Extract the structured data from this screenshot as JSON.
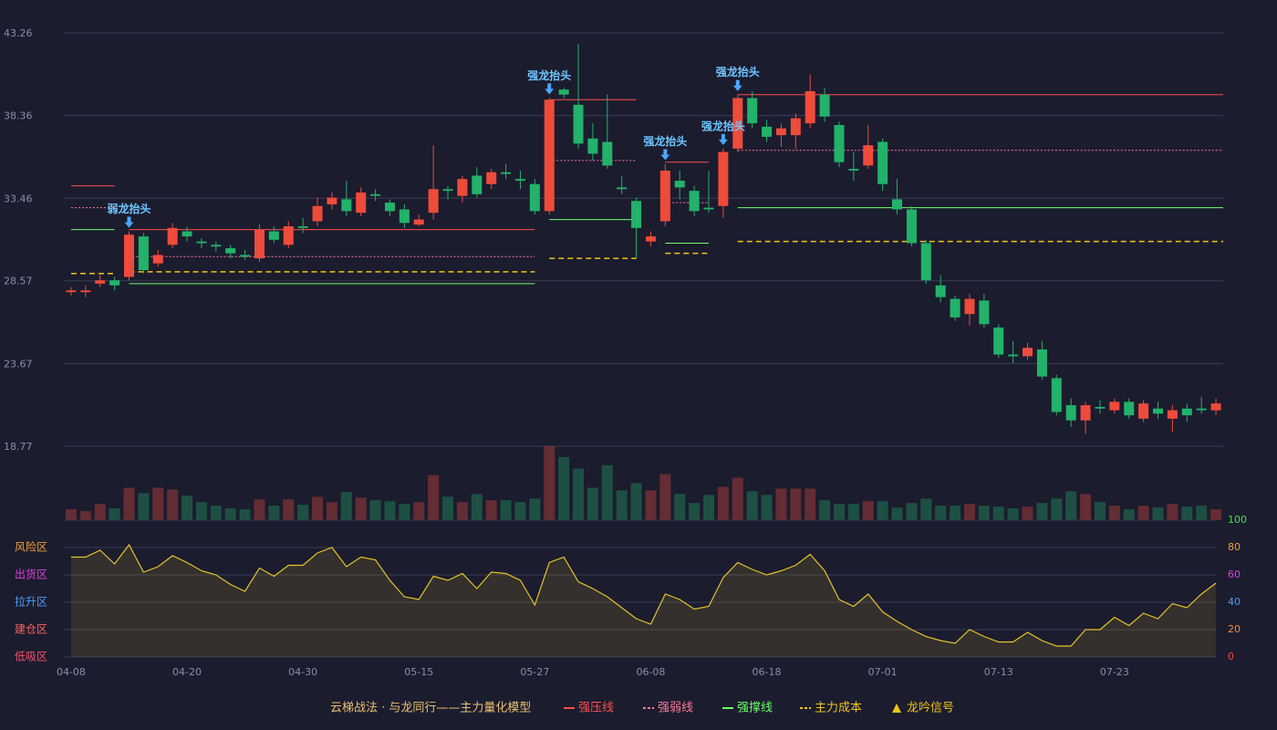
{
  "chart_data": {
    "type": "candlestick",
    "categories": [
      "04-08",
      null,
      null,
      null,
      null,
      null,
      null,
      null,
      "04-20",
      null,
      null,
      null,
      null,
      null,
      null,
      null,
      "04-30",
      null,
      null,
      null,
      null,
      null,
      null,
      null,
      "05-15",
      null,
      null,
      null,
      null,
      null,
      null,
      null,
      "05-27",
      null,
      null,
      null,
      null,
      null,
      null,
      null,
      "06-08",
      null,
      null,
      null,
      null,
      null,
      null,
      null,
      "06-18",
      null,
      null,
      null,
      null,
      null,
      null,
      null,
      "07-01",
      null,
      null,
      null,
      null,
      null,
      null,
      null,
      "07-13",
      null,
      null,
      null,
      null,
      null,
      null,
      null,
      "07-23",
      null,
      null,
      null,
      null,
      null,
      null,
      null
    ],
    "open": [
      27.9,
      27.9,
      28.4,
      28.6,
      28.8,
      31.2,
      29.6,
      30.7,
      31.5,
      30.9,
      30.7,
      30.5,
      30.1,
      29.9,
      31.5,
      30.7,
      31.8,
      32.1,
      33.1,
      33.4,
      32.6,
      33.7,
      33.2,
      32.8,
      31.9,
      32.6,
      34.0,
      33.6,
      34.8,
      34.3,
      35.0,
      34.6,
      34.3,
      32.7,
      39.9,
      39.0,
      37.0,
      36.8,
      34.1,
      33.3,
      30.9,
      32.1,
      34.5,
      33.9,
      32.9,
      33.0,
      36.4,
      39.4,
      37.7,
      37.2,
      37.2,
      37.9,
      39.6,
      37.8,
      35.2,
      35.4,
      36.8,
      33.4,
      32.8,
      30.8,
      28.3,
      27.5,
      26.6,
      27.4,
      25.8,
      24.2,
      24.1,
      24.5,
      22.8,
      21.2,
      20.3,
      21.1,
      20.9,
      21.4,
      20.4,
      21.0,
      20.4,
      21.0,
      21.0,
      20.9
    ],
    "high": [
      28.2,
      28.3,
      28.9,
      28.8,
      31.5,
      31.4,
      30.4,
      32.0,
      31.8,
      31.1,
      30.9,
      30.7,
      30.4,
      31.9,
      31.8,
      32.1,
      32.3,
      33.5,
      33.8,
      34.5,
      34.1,
      34.0,
      33.4,
      33.1,
      32.5,
      36.6,
      34.2,
      34.8,
      35.3,
      35.2,
      35.5,
      35.1,
      34.6,
      39.4,
      40.0,
      42.6,
      37.9,
      39.6,
      34.8,
      33.5,
      31.5,
      35.5,
      35.1,
      34.2,
      35.1,
      36.4,
      39.6,
      39.8,
      38.1,
      37.9,
      38.5,
      40.8,
      40.0,
      38.0,
      36.2,
      37.8,
      37.0,
      34.6,
      33.0,
      31.0,
      28.9,
      27.7,
      27.8,
      27.8,
      26.0,
      25.0,
      24.9,
      25.0,
      23.0,
      21.6,
      21.4,
      21.5,
      21.6,
      21.6,
      21.5,
      21.4,
      21.2,
      21.3,
      21.7,
      21.6
    ],
    "low": [
      27.7,
      27.6,
      28.2,
      28.0,
      28.6,
      29.0,
      29.4,
      30.5,
      30.9,
      30.5,
      30.3,
      29.9,
      29.8,
      29.7,
      30.8,
      30.5,
      31.4,
      31.8,
      32.8,
      32.4,
      32.4,
      33.3,
      32.4,
      31.7,
      31.8,
      32.2,
      33.4,
      33.2,
      33.5,
      34.0,
      34.6,
      34.0,
      32.5,
      32.5,
      39.4,
      36.4,
      35.7,
      35.2,
      33.7,
      29.9,
      30.6,
      31.8,
      33.4,
      32.4,
      32.6,
      32.3,
      36.2,
      37.6,
      36.8,
      36.5,
      36.4,
      37.6,
      38.0,
      35.3,
      34.5,
      35.2,
      33.9,
      32.5,
      30.6,
      28.4,
      27.3,
      26.2,
      25.9,
      25.8,
      24.0,
      23.7,
      23.9,
      22.7,
      20.6,
      19.9,
      19.5,
      20.7,
      20.7,
      20.4,
      20.2,
      20.4,
      19.6,
      20.2,
      20.7,
      20.6
    ],
    "close": [
      28.0,
      28.0,
      28.6,
      28.3,
      31.3,
      29.2,
      30.1,
      31.7,
      31.2,
      30.8,
      30.6,
      30.2,
      30.0,
      31.6,
      31.0,
      31.8,
      31.7,
      33.0,
      33.5,
      32.7,
      33.8,
      33.6,
      32.7,
      32.0,
      32.2,
      34.0,
      33.9,
      34.6,
      33.7,
      35.0,
      34.9,
      34.5,
      32.7,
      39.3,
      39.6,
      36.7,
      36.1,
      35.4,
      34.0,
      31.7,
      31.2,
      35.1,
      34.1,
      32.7,
      32.8,
      36.2,
      39.4,
      37.9,
      37.1,
      37.6,
      38.2,
      39.8,
      38.3,
      35.6,
      35.1,
      36.6,
      34.3,
      32.8,
      30.8,
      28.6,
      27.6,
      26.4,
      27.5,
      26.0,
      24.2,
      24.1,
      24.6,
      22.9,
      20.8,
      20.3,
      21.2,
      21.0,
      21.4,
      20.6,
      21.3,
      20.7,
      20.9,
      20.6,
      20.9,
      21.3
    ],
    "up_color": "#ee4b3b",
    "down_color": "#22b26a",
    "ylim": [
      18.77,
      43.26
    ],
    "yticks": [
      43.26,
      38.36,
      33.46,
      28.57,
      23.67,
      18.77
    ],
    "grid": true,
    "volume": {
      "values": [
        12,
        10,
        18,
        13,
        36,
        30,
        36,
        34,
        27,
        20,
        16,
        13,
        12,
        23,
        16,
        23,
        17,
        26,
        20,
        31,
        25,
        22,
        21,
        18,
        20,
        50,
        26,
        20,
        29,
        22,
        22,
        20,
        24,
        82,
        70,
        57,
        36,
        61,
        33,
        41,
        33,
        51,
        29,
        19,
        28,
        37,
        47,
        32,
        28,
        35,
        35,
        35,
        22,
        18,
        18,
        21,
        21,
        14,
        19,
        24,
        16,
        16,
        18,
        16,
        15,
        13,
        15,
        19,
        24,
        32,
        29,
        20,
        16,
        12,
        16,
        14,
        18,
        15,
        16,
        12
      ]
    },
    "level_series": [
      {
        "name": "强压线",
        "color": "#ff4d4d",
        "style": "solid",
        "segments": [
          {
            "start": 0,
            "end": 3,
            "value": 34.2
          },
          {
            "start": 4,
            "end": 32,
            "value": 31.6
          },
          {
            "start": 33,
            "end": 39,
            "value": 39.3
          },
          {
            "start": 41,
            "end": 44,
            "value": 35.6
          },
          {
            "start": 46,
            "end": 79,
            "value": 39.6
          }
        ]
      },
      {
        "name": "强弱线",
        "color": "#ff7a9a",
        "style": "dotted",
        "segments": [
          {
            "start": 0,
            "end": 3,
            "value": 32.9
          },
          {
            "start": 4,
            "end": 32,
            "value": 30.0
          },
          {
            "start": 33,
            "end": 39,
            "value": 35.7
          },
          {
            "start": 41,
            "end": 44,
            "value": 33.2
          },
          {
            "start": 46,
            "end": 79,
            "value": 36.3
          }
        ]
      },
      {
        "name": "强撑线",
        "color": "#6cff6c",
        "style": "solid",
        "segments": [
          {
            "start": 0,
            "end": 3,
            "value": 31.6
          },
          {
            "start": 4,
            "end": 32,
            "value": 28.4
          },
          {
            "start": 33,
            "end": 39,
            "value": 32.2
          },
          {
            "start": 41,
            "end": 44,
            "value": 30.8
          },
          {
            "start": 46,
            "end": 79,
            "value": 32.9
          }
        ]
      },
      {
        "name": "主力成本",
        "color": "#f0c419",
        "style": "dashed",
        "segments": [
          {
            "start": 0,
            "end": 3,
            "value": 29.0
          },
          {
            "start": 4,
            "end": 32,
            "value": 29.1
          },
          {
            "start": 33,
            "end": 39,
            "value": 29.9
          },
          {
            "start": 41,
            "end": 44,
            "value": 30.2
          },
          {
            "start": 46,
            "end": 79,
            "value": 30.9
          }
        ]
      }
    ],
    "signals": [
      {
        "index": 4,
        "label": "弱龙抬头"
      },
      {
        "index": 33,
        "label": "强龙抬头"
      },
      {
        "index": 41,
        "label": "强龙抬头"
      },
      {
        "index": 45,
        "label": "强龙抬头"
      },
      {
        "index": 46,
        "label": "强龙抬头"
      }
    ],
    "signal_legend": {
      "name": "龙吟信号",
      "color": "#f0c419"
    },
    "model_title": "云梯战法 · 与龙同行——主力量化模型",
    "oscillator": {
      "type": "line",
      "color": "#e6c229",
      "values": [
        73,
        73,
        78,
        68,
        82,
        62,
        66,
        74,
        69,
        63,
        60,
        53,
        48,
        65,
        59,
        67,
        67,
        76,
        80,
        66,
        73,
        71,
        56,
        44,
        42,
        59,
        56,
        61,
        50,
        62,
        61,
        56,
        38,
        69,
        73,
        55,
        50,
        44,
        36,
        28,
        24,
        46,
        42,
        35,
        37,
        58,
        69,
        64,
        60,
        63,
        67,
        75,
        63,
        42,
        37,
        46,
        33,
        26,
        20,
        15,
        12,
        10,
        20,
        15,
        11,
        11,
        18,
        12,
        8,
        8,
        20,
        20,
        29,
        23,
        32,
        28,
        39,
        36,
        46,
        54
      ],
      "ylim": [
        0,
        100
      ],
      "yticks": [
        0,
        20,
        40,
        60,
        80,
        100
      ],
      "ytick_colors": [
        "#ff4040",
        "#ff8c40",
        "#4a9eff",
        "#e040e0",
        "#f0a030",
        "#4ce04c"
      ],
      "zones": [
        {
          "label": "风险区",
          "color": "#f0a030"
        },
        {
          "label": "出货区",
          "color": "#e040e0"
        },
        {
          "label": "拉升区",
          "color": "#4a9eff"
        },
        {
          "label": "建仓区",
          "color": "#ff6060"
        },
        {
          "label": "低吸区",
          "color": "#ff4d6d"
        }
      ]
    }
  }
}
